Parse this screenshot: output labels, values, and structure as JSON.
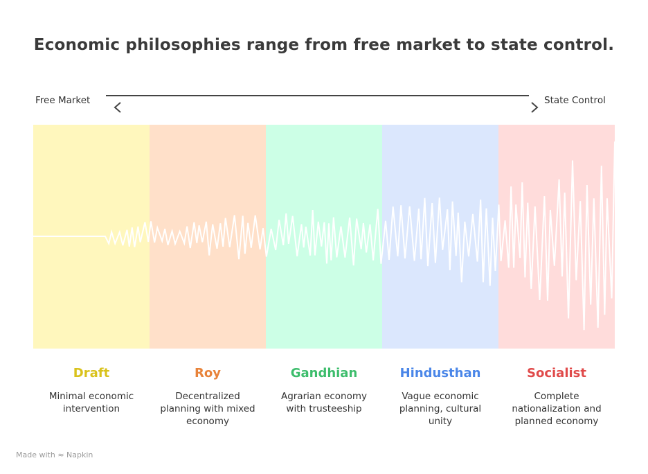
{
  "title": "Economic philosophies range from free market to state control.",
  "axis": {
    "left_label": "Free Market",
    "right_label": "State Control"
  },
  "philosophies": [
    {
      "name": "Draft",
      "description": "Minimal economic intervention",
      "color": "#d9c21c",
      "band_color": "#fff7bd"
    },
    {
      "name": "Roy",
      "description": "Decentralized planning with mixed economy",
      "color": "#e8833a",
      "band_color": "#ffe0c9"
    },
    {
      "name": "Gandhian",
      "description": "Agrarian economy with trusteeship",
      "color": "#3dbd6c",
      "band_color": "#ccffe6"
    },
    {
      "name": "Hindusthan",
      "description": "Vague economic planning, cultural unity",
      "color": "#4a86e8",
      "band_color": "#dbe7fd"
    },
    {
      "name": "Socialist",
      "description": "Complete nationalization and planned economy",
      "color": "#e04a4a",
      "band_color": "#ffdcdb"
    }
  ],
  "footer": {
    "text": "Made with",
    "brand": "Napkin"
  }
}
